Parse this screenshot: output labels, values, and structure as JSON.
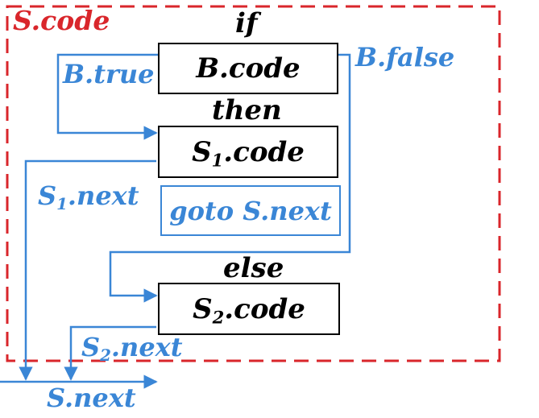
{
  "frame_label": "S.code",
  "keywords": {
    "if": "if",
    "then": "then",
    "else": "else"
  },
  "boxes": {
    "b_code": "B.code",
    "s1_code": {
      "base": "S",
      "sub": "1",
      "rest": ".code"
    },
    "goto": "goto S.next",
    "s2_code": {
      "base": "S",
      "sub": "2",
      "rest": ".code"
    }
  },
  "edge_labels": {
    "b_true": "B.true",
    "b_false": "B.false",
    "s1_next": {
      "base": "S",
      "sub": "1",
      "rest": ".next"
    },
    "s2_next": {
      "base": "S",
      "sub": "2",
      "rest": ".next"
    },
    "s_next": "S.next"
  },
  "colors": {
    "frame": "#d9262b",
    "flow": "#3a86d6",
    "box": "#000000"
  }
}
